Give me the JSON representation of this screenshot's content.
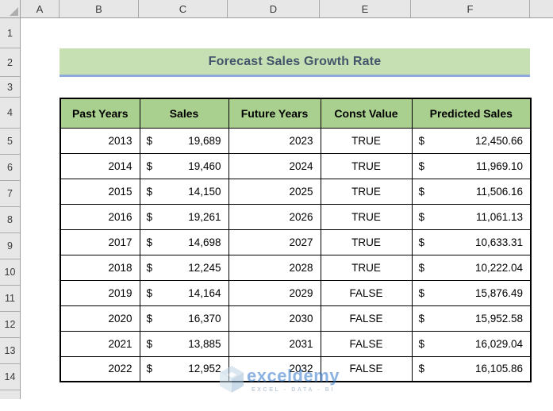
{
  "sheet": {
    "column_headers": [
      "A",
      "B",
      "C",
      "D",
      "E",
      "F"
    ],
    "row_headers": [
      "1",
      "2",
      "3",
      "4",
      "5",
      "6",
      "7",
      "8",
      "9",
      "10",
      "11",
      "12",
      "13",
      "14"
    ]
  },
  "title": "Forecast Sales Growth Rate",
  "table": {
    "headers": [
      "Past Years",
      "Sales",
      "Future Years",
      "Const Value",
      "Predicted Sales"
    ],
    "currency": "$",
    "rows": [
      {
        "past_year": "2013",
        "sales": "19,689",
        "future_year": "2023",
        "const_value": "TRUE",
        "predicted_sales": "12,450.66"
      },
      {
        "past_year": "2014",
        "sales": "19,460",
        "future_year": "2024",
        "const_value": "TRUE",
        "predicted_sales": "11,969.10"
      },
      {
        "past_year": "2015",
        "sales": "14,150",
        "future_year": "2025",
        "const_value": "TRUE",
        "predicted_sales": "11,506.16"
      },
      {
        "past_year": "2016",
        "sales": "19,261",
        "future_year": "2026",
        "const_value": "TRUE",
        "predicted_sales": "11,061.13"
      },
      {
        "past_year": "2017",
        "sales": "14,698",
        "future_year": "2027",
        "const_value": "TRUE",
        "predicted_sales": "10,633.31"
      },
      {
        "past_year": "2018",
        "sales": "12,245",
        "future_year": "2028",
        "const_value": "TRUE",
        "predicted_sales": "10,222.04"
      },
      {
        "past_year": "2019",
        "sales": "14,164",
        "future_year": "2029",
        "const_value": "FALSE",
        "predicted_sales": "15,876.49"
      },
      {
        "past_year": "2020",
        "sales": "16,370",
        "future_year": "2030",
        "const_value": "FALSE",
        "predicted_sales": "15,952.58"
      },
      {
        "past_year": "2021",
        "sales": "13,885",
        "future_year": "2031",
        "const_value": "FALSE",
        "predicted_sales": "16,029.04"
      },
      {
        "past_year": "2022",
        "sales": "12,952",
        "future_year": "2032",
        "const_value": "FALSE",
        "predicted_sales": "16,105.86"
      }
    ]
  },
  "watermark": {
    "brand": "exceldemy",
    "tagline": "EXCEL - DATA - BI"
  },
  "colors": {
    "banner_green": "#C6E0B4",
    "header_green": "#A9D08E",
    "banner_underline": "#8EA9DB",
    "title_text": "#44546A"
  }
}
